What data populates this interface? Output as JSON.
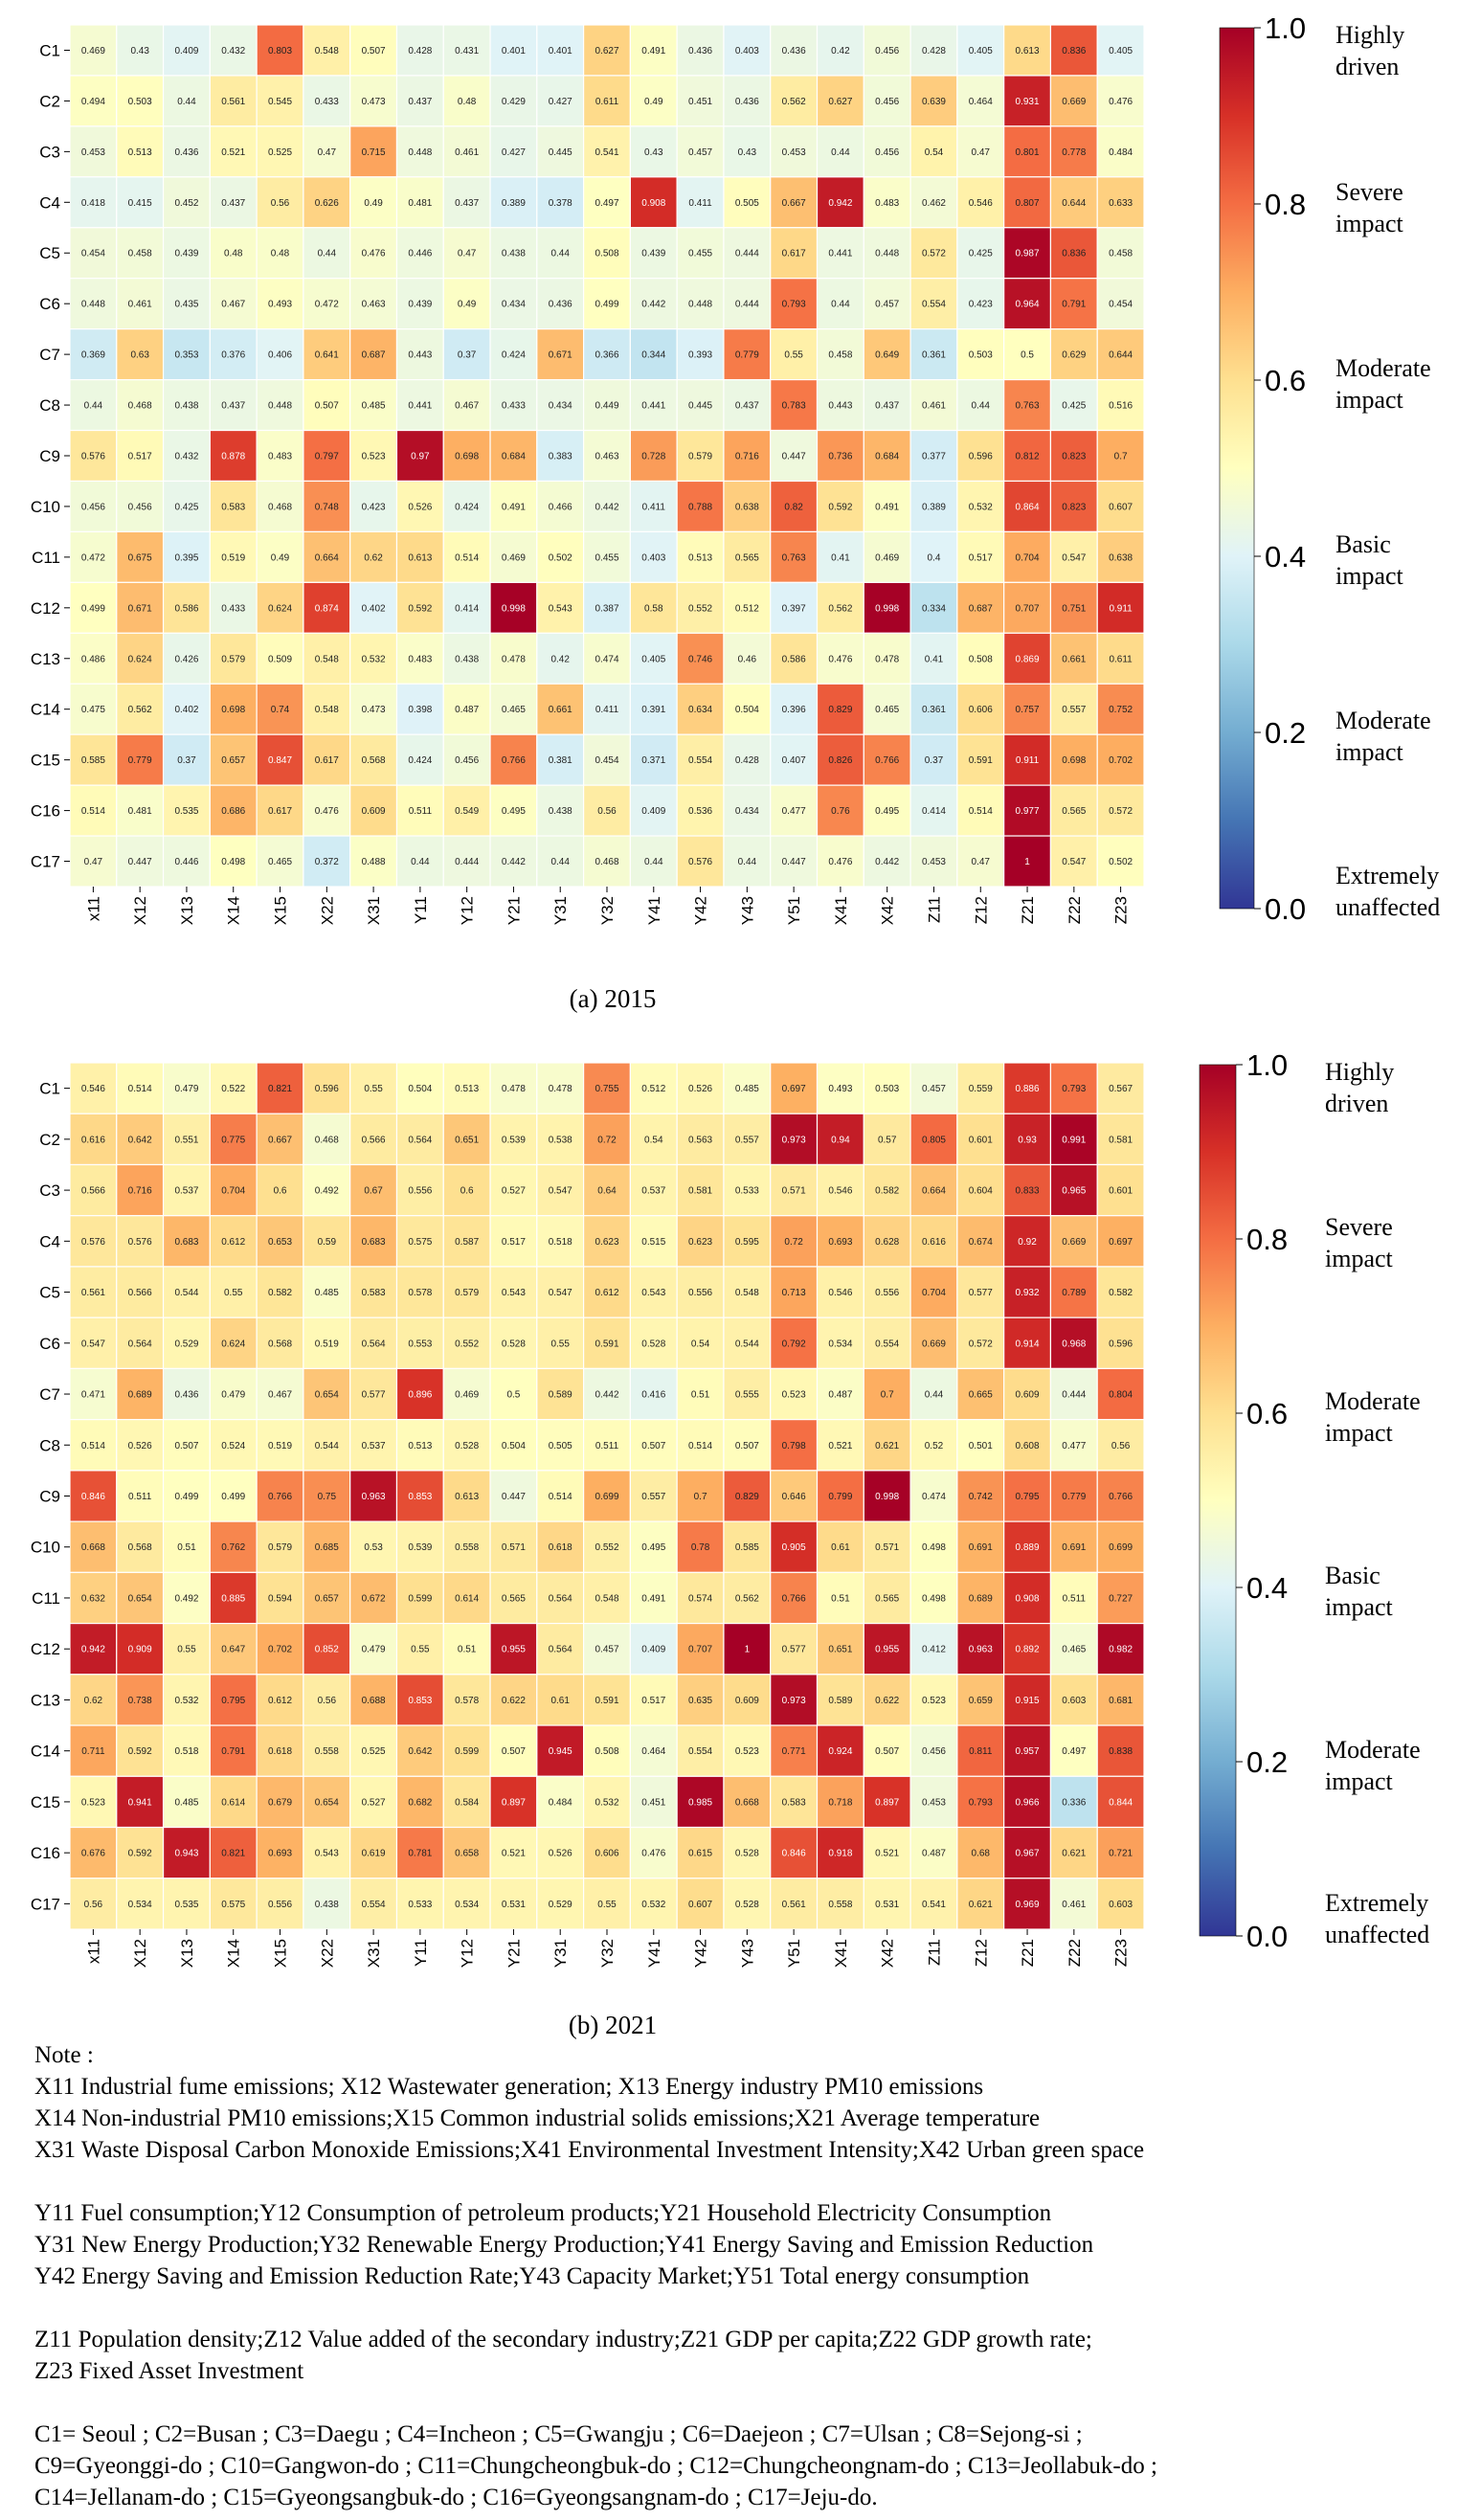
{
  "chart_data": [
    {
      "type": "heatmap",
      "caption": "(a) 2015",
      "x_labels": [
        "x11",
        "X12",
        "X13",
        "X14",
        "X15",
        "X22",
        "X31",
        "Y11",
        "Y12",
        "Y21",
        "Y31",
        "Y32",
        "Y41",
        "Y42",
        "Y43",
        "Y51",
        "X41",
        "X42",
        "Z11",
        "Z12",
        "Z21",
        "Z22",
        "Z23"
      ],
      "y_labels": [
        "C1",
        "C2",
        "C3",
        "C4",
        "C5",
        "C6",
        "C7",
        "C8",
        "C9",
        "C10",
        "C11",
        "C12",
        "C13",
        "C14",
        "C15",
        "C16",
        "C17"
      ],
      "values": [
        [
          0.469,
          0.43,
          0.409,
          0.432,
          0.803,
          0.548,
          0.507,
          0.428,
          0.431,
          0.401,
          0.401,
          0.627,
          0.491,
          0.436,
          0.403,
          0.436,
          0.42,
          0.456,
          0.428,
          0.405,
          0.613,
          0.836,
          0.405
        ],
        [
          0.494,
          0.503,
          0.44,
          0.561,
          0.545,
          0.433,
          0.473,
          0.437,
          0.48,
          0.429,
          0.427,
          0.611,
          0.49,
          0.451,
          0.436,
          0.562,
          0.627,
          0.456,
          0.639,
          0.464,
          0.931,
          0.669,
          0.476
        ],
        [
          0.453,
          0.513,
          0.436,
          0.521,
          0.525,
          0.47,
          0.715,
          0.448,
          0.461,
          0.427,
          0.445,
          0.541,
          0.43,
          0.457,
          0.43,
          0.453,
          0.44,
          0.456,
          0.54,
          0.47,
          0.801,
          0.778,
          0.484
        ],
        [
          0.418,
          0.415,
          0.452,
          0.437,
          0.56,
          0.626,
          0.49,
          0.481,
          0.437,
          0.389,
          0.378,
          0.497,
          0.908,
          0.411,
          0.505,
          0.667,
          0.942,
          0.483,
          0.462,
          0.546,
          0.807,
          0.644,
          0.633
        ],
        [
          0.454,
          0.458,
          0.439,
          0.48,
          0.48,
          0.44,
          0.476,
          0.446,
          0.47,
          0.438,
          0.44,
          0.508,
          0.439,
          0.455,
          0.444,
          0.617,
          0.441,
          0.448,
          0.572,
          0.425,
          0.987,
          0.836,
          0.458
        ],
        [
          0.448,
          0.461,
          0.435,
          0.467,
          0.493,
          0.472,
          0.463,
          0.439,
          0.49,
          0.434,
          0.436,
          0.499,
          0.442,
          0.448,
          0.444,
          0.793,
          0.44,
          0.457,
          0.554,
          0.423,
          0.964,
          0.791,
          0.454
        ],
        [
          0.369,
          0.63,
          0.353,
          0.376,
          0.406,
          0.641,
          0.687,
          0.443,
          0.37,
          0.424,
          0.671,
          0.366,
          0.344,
          0.393,
          0.779,
          0.55,
          0.458,
          0.649,
          0.361,
          0.503,
          0.5,
          0.629,
          0.644
        ],
        [
          0.44,
          0.468,
          0.438,
          0.437,
          0.448,
          0.507,
          0.485,
          0.441,
          0.467,
          0.433,
          0.434,
          0.449,
          0.441,
          0.445,
          0.437,
          0.783,
          0.443,
          0.437,
          0.461,
          0.44,
          0.763,
          0.425,
          0.516
        ],
        [
          0.576,
          0.517,
          0.432,
          0.878,
          0.483,
          0.797,
          0.523,
          0.97,
          0.698,
          0.684,
          0.383,
          0.463,
          0.728,
          0.579,
          0.716,
          0.447,
          0.736,
          0.684,
          0.377,
          0.596,
          0.812,
          0.823,
          0.7
        ],
        [
          0.456,
          0.456,
          0.425,
          0.583,
          0.468,
          0.748,
          0.423,
          0.526,
          0.424,
          0.491,
          0.466,
          0.442,
          0.411,
          0.788,
          0.638,
          0.82,
          0.592,
          0.491,
          0.389,
          0.532,
          0.864,
          0.823,
          0.607
        ],
        [
          0.472,
          0.675,
          0.395,
          0.519,
          0.49,
          0.664,
          0.62,
          0.613,
          0.514,
          0.469,
          0.502,
          0.455,
          0.403,
          0.513,
          0.565,
          0.763,
          0.41,
          0.469,
          0.4,
          0.517,
          0.704,
          0.547,
          0.638
        ],
        [
          0.499,
          0.671,
          0.586,
          0.433,
          0.624,
          0.874,
          0.402,
          0.592,
          0.414,
          0.998,
          0.543,
          0.387,
          0.58,
          0.552,
          0.512,
          0.397,
          0.562,
          0.998,
          0.334,
          0.687,
          0.707,
          0.751,
          0.911
        ],
        [
          0.486,
          0.624,
          0.426,
          0.579,
          0.509,
          0.548,
          0.532,
          0.483,
          0.438,
          0.478,
          0.42,
          0.474,
          0.405,
          0.746,
          0.46,
          0.586,
          0.476,
          0.478,
          0.41,
          0.508,
          0.869,
          0.661,
          0.611
        ],
        [
          0.475,
          0.562,
          0.402,
          0.698,
          0.74,
          0.548,
          0.473,
          0.398,
          0.487,
          0.465,
          0.661,
          0.411,
          0.391,
          0.634,
          0.504,
          0.396,
          0.829,
          0.465,
          0.361,
          0.606,
          0.757,
          0.557,
          0.752
        ],
        [
          0.585,
          0.779,
          0.37,
          0.657,
          0.847,
          0.617,
          0.568,
          0.424,
          0.456,
          0.766,
          0.381,
          0.454,
          0.371,
          0.554,
          0.428,
          0.407,
          0.826,
          0.766,
          0.37,
          0.591,
          0.911,
          0.698,
          0.702
        ],
        [
          0.514,
          0.481,
          0.535,
          0.686,
          0.617,
          0.476,
          0.609,
          0.511,
          0.549,
          0.495,
          0.438,
          0.56,
          0.409,
          0.536,
          0.434,
          0.477,
          0.76,
          0.495,
          0.414,
          0.514,
          0.977,
          0.565,
          0.572
        ],
        [
          0.47,
          0.447,
          0.446,
          0.498,
          0.465,
          0.372,
          0.488,
          0.44,
          0.444,
          0.442,
          0.44,
          0.468,
          0.44,
          0.576,
          0.44,
          0.447,
          0.476,
          0.442,
          0.453,
          0.47,
          1,
          0.547,
          0.502
        ]
      ],
      "zlim": [
        0,
        1
      ],
      "colorbar_ticks": [
        "0.0",
        "0.2",
        "0.4",
        "0.6",
        "0.8",
        "1.0"
      ],
      "colorbar_labels": [
        {
          "value": 0.0,
          "text": "Extremely unaffected"
        },
        {
          "value": 0.2,
          "text": "Moderate impact"
        },
        {
          "value": 0.4,
          "text": "Basic impact"
        },
        {
          "value": 0.6,
          "text": "Moderate impact"
        },
        {
          "value": 0.8,
          "text": "Severe impact"
        },
        {
          "value": 1.0,
          "text": "Highly driven"
        }
      ]
    },
    {
      "type": "heatmap",
      "caption": "(b) 2021",
      "x_labels": [
        "x11",
        "X12",
        "X13",
        "X14",
        "X15",
        "X22",
        "X31",
        "Y11",
        "Y12",
        "Y21",
        "Y31",
        "Y32",
        "Y41",
        "Y42",
        "Y43",
        "Y51",
        "X41",
        "X42",
        "Z11",
        "Z12",
        "Z21",
        "Z22",
        "Z23"
      ],
      "y_labels": [
        "C1",
        "C2",
        "C3",
        "C4",
        "C5",
        "C6",
        "C7",
        "C8",
        "C9",
        "C10",
        "C11",
        "C12",
        "C13",
        "C14",
        "C15",
        "C16",
        "C17"
      ],
      "values": [
        [
          0.546,
          0.514,
          0.479,
          0.522,
          0.821,
          0.596,
          0.55,
          0.504,
          0.513,
          0.478,
          0.478,
          0.755,
          0.512,
          0.526,
          0.485,
          0.697,
          0.493,
          0.503,
          0.457,
          0.559,
          0.886,
          0.793,
          0.567
        ],
        [
          0.616,
          0.642,
          0.551,
          0.775,
          0.667,
          0.468,
          0.566,
          0.564,
          0.651,
          0.539,
          0.538,
          0.72,
          0.54,
          0.563,
          0.557,
          0.973,
          0.94,
          0.57,
          0.805,
          0.601,
          0.93,
          0.991,
          0.581
        ],
        [
          0.566,
          0.716,
          0.537,
          0.704,
          0.6,
          0.492,
          0.67,
          0.556,
          0.6,
          0.527,
          0.547,
          0.64,
          0.537,
          0.581,
          0.533,
          0.571,
          0.546,
          0.582,
          0.664,
          0.604,
          0.833,
          0.965,
          0.601
        ],
        [
          0.576,
          0.576,
          0.683,
          0.612,
          0.653,
          0.59,
          0.683,
          0.575,
          0.587,
          0.517,
          0.518,
          0.623,
          0.515,
          0.623,
          0.595,
          0.72,
          0.693,
          0.628,
          0.616,
          0.674,
          0.92,
          0.669,
          0.697
        ],
        [
          0.561,
          0.566,
          0.544,
          0.55,
          0.582,
          0.485,
          0.583,
          0.578,
          0.579,
          0.543,
          0.547,
          0.612,
          0.543,
          0.556,
          0.548,
          0.713,
          0.546,
          0.556,
          0.704,
          0.577,
          0.932,
          0.789,
          0.582
        ],
        [
          0.547,
          0.564,
          0.529,
          0.624,
          0.568,
          0.519,
          0.564,
          0.553,
          0.552,
          0.528,
          0.55,
          0.591,
          0.528,
          0.54,
          0.544,
          0.792,
          0.534,
          0.554,
          0.669,
          0.572,
          0.914,
          0.968,
          0.596
        ],
        [
          0.471,
          0.689,
          0.436,
          0.479,
          0.467,
          0.654,
          0.577,
          0.896,
          0.469,
          0.5,
          0.589,
          0.442,
          0.416,
          0.51,
          0.555,
          0.523,
          0.487,
          0.7,
          0.44,
          0.665,
          0.609,
          0.444,
          0.804
        ],
        [
          0.514,
          0.526,
          0.507,
          0.524,
          0.519,
          0.544,
          0.537,
          0.513,
          0.528,
          0.504,
          0.505,
          0.511,
          0.507,
          0.514,
          0.507,
          0.798,
          0.521,
          0.621,
          0.52,
          0.501,
          0.608,
          0.477,
          0.56
        ],
        [
          0.846,
          0.511,
          0.499,
          0.499,
          0.766,
          0.75,
          0.963,
          0.853,
          0.613,
          0.447,
          0.514,
          0.699,
          0.557,
          0.7,
          0.829,
          0.646,
          0.799,
          0.998,
          0.474,
          0.742,
          0.795,
          0.779,
          0.766
        ],
        [
          0.668,
          0.568,
          0.51,
          0.762,
          0.579,
          0.685,
          0.53,
          0.539,
          0.558,
          0.571,
          0.618,
          0.552,
          0.495,
          0.78,
          0.585,
          0.905,
          0.61,
          0.571,
          0.498,
          0.691,
          0.889,
          0.691,
          0.699
        ],
        [
          0.632,
          0.654,
          0.492,
          0.885,
          0.594,
          0.657,
          0.672,
          0.599,
          0.614,
          0.565,
          0.564,
          0.548,
          0.491,
          0.574,
          0.562,
          0.766,
          0.51,
          0.565,
          0.498,
          0.689,
          0.908,
          0.511,
          0.727
        ],
        [
          0.942,
          0.909,
          0.55,
          0.647,
          0.702,
          0.852,
          0.479,
          0.55,
          0.51,
          0.955,
          0.564,
          0.457,
          0.409,
          0.707,
          1,
          0.577,
          0.651,
          0.955,
          0.412,
          0.963,
          0.892,
          0.465,
          0.982
        ],
        [
          0.62,
          0.738,
          0.532,
          0.795,
          0.612,
          0.56,
          0.688,
          0.853,
          0.578,
          0.622,
          0.61,
          0.591,
          0.517,
          0.635,
          0.609,
          0.973,
          0.589,
          0.622,
          0.523,
          0.659,
          0.915,
          0.603,
          0.681
        ],
        [
          0.711,
          0.592,
          0.518,
          0.791,
          0.618,
          0.558,
          0.525,
          0.642,
          0.599,
          0.507,
          0.945,
          0.508,
          0.464,
          0.554,
          0.523,
          0.771,
          0.924,
          0.507,
          0.456,
          0.811,
          0.957,
          0.497,
          0.838
        ],
        [
          0.523,
          0.941,
          0.485,
          0.614,
          0.679,
          0.654,
          0.527,
          0.682,
          0.584,
          0.897,
          0.484,
          0.532,
          0.451,
          0.985,
          0.668,
          0.583,
          0.718,
          0.897,
          0.453,
          0.793,
          0.966,
          0.336,
          0.844
        ],
        [
          0.676,
          0.592,
          0.943,
          0.821,
          0.693,
          0.543,
          0.619,
          0.781,
          0.658,
          0.521,
          0.526,
          0.606,
          0.476,
          0.615,
          0.528,
          0.846,
          0.918,
          0.521,
          0.487,
          0.68,
          0.967,
          0.621,
          0.721
        ],
        [
          0.56,
          0.534,
          0.535,
          0.575,
          0.556,
          0.438,
          0.554,
          0.533,
          0.534,
          0.531,
          0.529,
          0.55,
          0.532,
          0.607,
          0.528,
          0.561,
          0.558,
          0.531,
          0.541,
          0.621,
          0.969,
          0.461,
          0.603
        ]
      ],
      "zlim": [
        0,
        1
      ],
      "colorbar_ticks": [
        "0.0",
        "0.2",
        "0.4",
        "0.6",
        "0.8",
        "1.0"
      ],
      "colorbar_labels": [
        {
          "value": 0.0,
          "text": "Extremely unaffected"
        },
        {
          "value": 0.2,
          "text": "Moderate impact"
        },
        {
          "value": 0.4,
          "text": "Basic impact"
        },
        {
          "value": 0.6,
          "text": "Moderate impact"
        },
        {
          "value": 0.8,
          "text": "Severe impact"
        },
        {
          "value": 1.0,
          "text": "Highly driven"
        }
      ]
    }
  ],
  "note": {
    "heading": "Note :",
    "lines": [
      "X11 Industrial fume emissions; X12 Wastewater generation; X13 Energy industry PM10 emissions",
      "X14 Non-industrial PM10 emissions;X15 Common industrial solids emissions;X21 Average temperature",
      "X31 Waste Disposal Carbon Monoxide Emissions;X41 Environmental Investment Intensity;X42 Urban green space",
      "",
      "Y11 Fuel consumption;Y12 Consumption of petroleum products;Y21 Household Electricity Consumption",
      "Y31 New Energy Production;Y32 Renewable Energy Production;Y41 Energy Saving and Emission Reduction",
      "Y42 Energy Saving and Emission Reduction Rate;Y43 Capacity Market;Y51 Total energy consumption",
      "",
      "Z11 Population density;Z12 Value added of the secondary industry;Z21 GDP per capita;Z22 GDP growth rate;",
      "Z23 Fixed Asset Investment",
      "",
      "C1= Seoul ; C2=Busan ; C3=Daegu ; C4=Incheon ; C5=Gwangju ; C6=Daejeon ; C7=Ulsan ; C8=Sejong-si ;",
      "C9=Gyeonggi-do ; C10=Gangwon-do ; C11=Chungcheongbuk-do ; C12=Chungcheongnam-do ; C13=Jeollabuk-do ;",
      "C14=Jellanam-do ; C15=Gyeongsangbuk-do ; C16=Gyeongsangnam-do ; C17=Jeju-do."
    ]
  }
}
